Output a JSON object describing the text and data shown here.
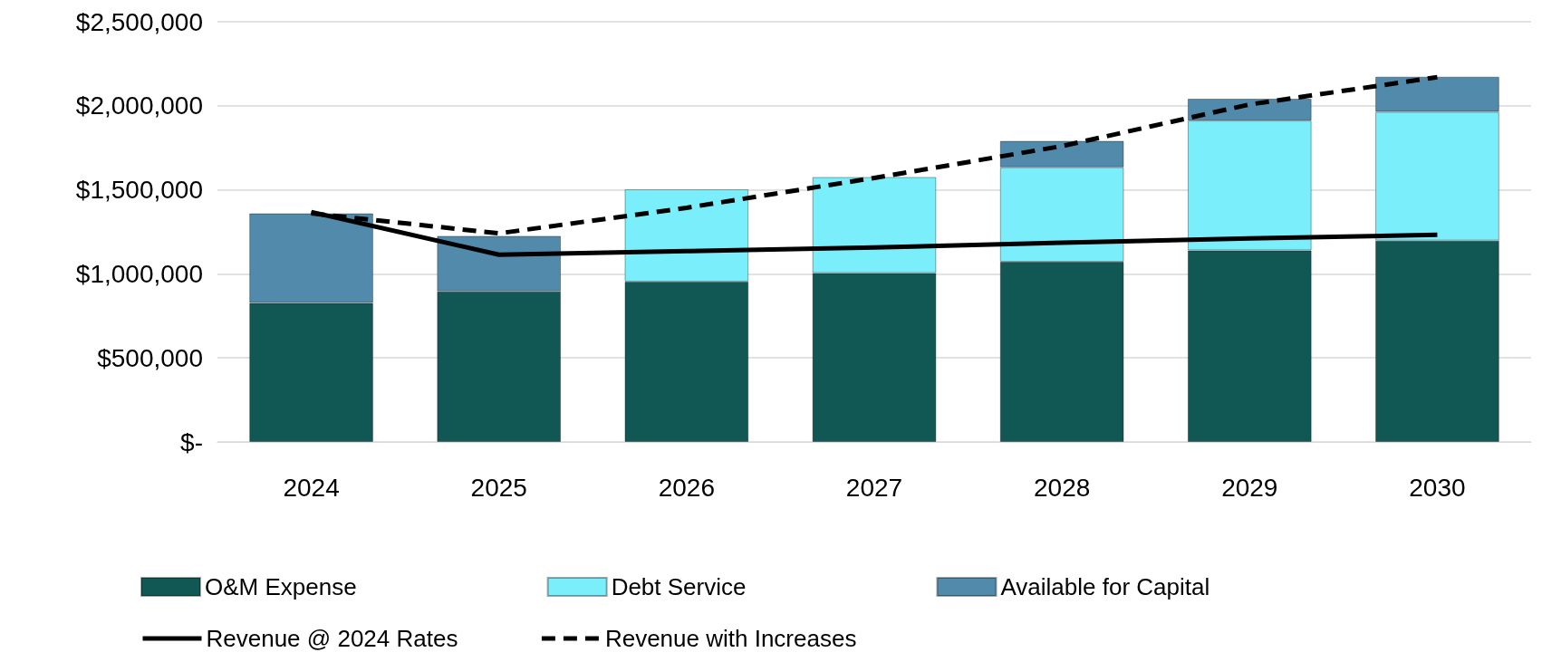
{
  "chart_data": {
    "type": "bar",
    "stacked": true,
    "categories": [
      "2024",
      "2025",
      "2026",
      "2027",
      "2028",
      "2029",
      "2030"
    ],
    "series": [
      {
        "name": "O&M Expense",
        "color": "#115753",
        "values": [
          827000,
          896000,
          954000,
          1005000,
          1072000,
          1140000,
          1198000
        ]
      },
      {
        "name": "Debt Service",
        "color": "#7aeefb",
        "values": [
          0,
          0,
          549000,
          571000,
          562000,
          772000,
          766000
        ]
      },
      {
        "name": "Available for Capital",
        "color": "#528aab",
        "values": [
          533000,
          330000,
          0,
          0,
          157000,
          130000,
          209000
        ]
      },
      {
        "name": "Revenue @ 2024 Rates",
        "type": "line",
        "color": "#000000",
        "line_style": "solid",
        "values": [
          1368000,
          1114000,
          1135000,
          1157000,
          1185000,
          1211000,
          1232000
        ]
      },
      {
        "name": "Revenue with Increases",
        "type": "line",
        "color": "#000000",
        "line_style": "dashed",
        "values": [
          1360000,
          1241000,
          1393000,
          1571000,
          1760000,
          2008000,
          2170000
        ]
      }
    ],
    "ylim": [
      0,
      2500000
    ],
    "yticks": [
      {
        "value": 0,
        "label": "$-"
      },
      {
        "value": 500000,
        "label": "$500,000"
      },
      {
        "value": 1000000,
        "label": "$1,000,000"
      },
      {
        "value": 1500000,
        "label": "$1,500,000"
      },
      {
        "value": 2000000,
        "label": "$2,000,000"
      },
      {
        "value": 2500000,
        "label": "$2,500,000"
      }
    ],
    "grid": "y",
    "legend": "bottom",
    "marker": "none"
  }
}
